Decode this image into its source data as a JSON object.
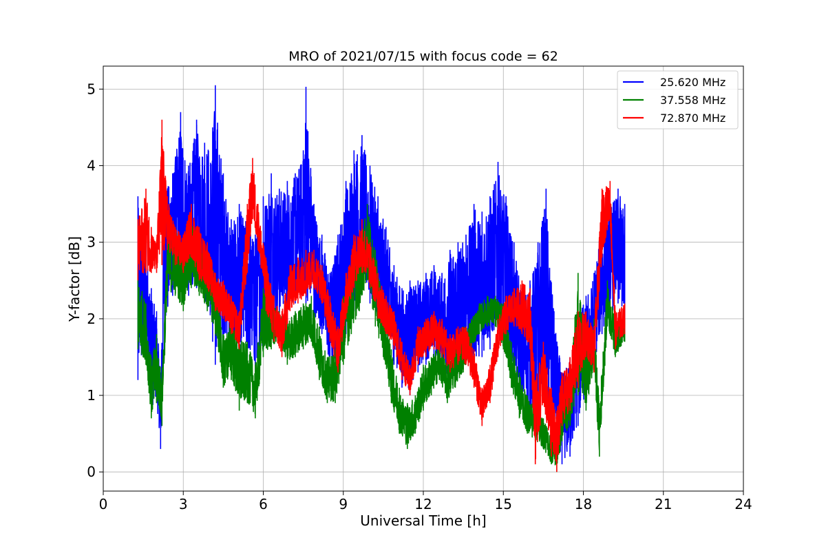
{
  "chart_data": {
    "type": "line",
    "title": "MRO of 2021/07/15 with focus code = 62",
    "xlabel": "Universal Time [h]",
    "ylabel": "Y-factor [dB]",
    "xlim": [
      0,
      24
    ],
    "ylim": [
      -0.25,
      5.3
    ],
    "xticks": [
      0,
      3,
      6,
      9,
      12,
      15,
      18,
      21,
      24
    ],
    "yticks": [
      0,
      1,
      2,
      3,
      4,
      5
    ],
    "grid": true,
    "legend": "top-right",
    "series": [
      {
        "name": "25.620 MHz",
        "color": "#0000ff",
        "band": [
          [
            1.3,
            1.2,
            3.6
          ],
          [
            1.6,
            1.5,
            3.0
          ],
          [
            1.8,
            0.8,
            2.4
          ],
          [
            2.0,
            0.9,
            2.1
          ],
          [
            2.15,
            0.3,
            1.3
          ],
          [
            2.3,
            1.8,
            3.8
          ],
          [
            2.6,
            2.3,
            3.9
          ],
          [
            2.9,
            2.5,
            4.7
          ],
          [
            3.2,
            2.3,
            4.0
          ],
          [
            3.5,
            2.4,
            4.6
          ],
          [
            3.8,
            2.2,
            4.3
          ],
          [
            4.1,
            1.7,
            4.5
          ],
          [
            4.2,
            1.4,
            5.05
          ],
          [
            4.5,
            1.7,
            3.9
          ],
          [
            4.8,
            1.6,
            3.3
          ],
          [
            5.1,
            1.4,
            3.5
          ],
          [
            5.4,
            1.5,
            3.3
          ],
          [
            5.7,
            1.3,
            3.1
          ],
          [
            6.0,
            1.6,
            3.6
          ],
          [
            6.3,
            1.9,
            3.9
          ],
          [
            6.6,
            2.0,
            3.7
          ],
          [
            6.9,
            2.1,
            3.8
          ],
          [
            7.2,
            2.2,
            3.9
          ],
          [
            7.5,
            2.4,
            4.2
          ],
          [
            7.6,
            2.2,
            5.03
          ],
          [
            7.9,
            2.0,
            3.5
          ],
          [
            8.2,
            1.8,
            3.1
          ],
          [
            8.5,
            1.3,
            2.6
          ],
          [
            8.8,
            1.4,
            3.1
          ],
          [
            9.1,
            1.8,
            3.8
          ],
          [
            9.4,
            2.1,
            4.2
          ],
          [
            9.7,
            2.4,
            4.4
          ],
          [
            10.0,
            2.2,
            4.0
          ],
          [
            10.3,
            1.9,
            3.6
          ],
          [
            10.6,
            1.7,
            3.2
          ],
          [
            10.9,
            1.4,
            2.7
          ],
          [
            11.2,
            1.1,
            2.4
          ],
          [
            11.5,
            1.0,
            2.5
          ],
          [
            11.8,
            1.3,
            2.5
          ],
          [
            12.1,
            1.4,
            2.6
          ],
          [
            12.4,
            1.5,
            2.7
          ],
          [
            12.7,
            1.3,
            2.6
          ],
          [
            13.0,
            1.2,
            2.9
          ],
          [
            13.3,
            1.4,
            3.0
          ],
          [
            13.6,
            1.5,
            3.1
          ],
          [
            13.9,
            1.4,
            3.5
          ],
          [
            14.2,
            1.5,
            3.4
          ],
          [
            14.5,
            1.6,
            3.6
          ],
          [
            14.8,
            1.8,
            4.05
          ],
          [
            15.1,
            1.7,
            3.6
          ],
          [
            15.4,
            1.3,
            3.0
          ],
          [
            15.7,
            0.9,
            2.4
          ],
          [
            16.0,
            0.7,
            2.5
          ],
          [
            16.3,
            0.8,
            3.0
          ],
          [
            16.6,
            0.8,
            3.7
          ],
          [
            16.9,
            0.6,
            2.1
          ],
          [
            17.2,
            0.1,
            1.3
          ],
          [
            17.5,
            0.2,
            1.5
          ],
          [
            17.8,
            0.6,
            2.1
          ],
          [
            18.1,
            1.0,
            2.3
          ],
          [
            18.4,
            1.4,
            2.6
          ],
          [
            18.7,
            1.8,
            3.3
          ],
          [
            19.0,
            2.0,
            3.5
          ],
          [
            19.3,
            2.2,
            3.7
          ],
          [
            19.55,
            1.9,
            3.5
          ]
        ]
      },
      {
        "name": "37.558 MHz",
        "color": "#008000",
        "band": [
          [
            1.3,
            1.6,
            2.6
          ],
          [
            1.6,
            1.4,
            2.2
          ],
          [
            1.8,
            0.7,
            1.5
          ],
          [
            2.0,
            0.9,
            1.8
          ],
          [
            2.2,
            0.6,
            1.3
          ],
          [
            2.4,
            2.3,
            3.1
          ],
          [
            2.7,
            2.3,
            3.2
          ],
          [
            3.0,
            2.1,
            3.0
          ],
          [
            3.3,
            2.4,
            3.3
          ],
          [
            3.6,
            2.3,
            3.1
          ],
          [
            3.9,
            2.1,
            2.9
          ],
          [
            4.2,
            1.8,
            2.6
          ],
          [
            4.5,
            1.1,
            1.8
          ],
          [
            4.8,
            1.2,
            2.0
          ],
          [
            5.1,
            0.8,
            1.8
          ],
          [
            5.4,
            0.9,
            1.7
          ],
          [
            5.7,
            0.7,
            1.4
          ],
          [
            6.0,
            1.5,
            2.4
          ],
          [
            6.3,
            1.6,
            2.2
          ],
          [
            6.6,
            1.7,
            2.1
          ],
          [
            6.9,
            1.4,
            2.0
          ],
          [
            7.2,
            1.5,
            2.1
          ],
          [
            7.5,
            1.6,
            2.2
          ],
          [
            7.8,
            1.7,
            2.3
          ],
          [
            8.1,
            1.2,
            1.9
          ],
          [
            8.4,
            0.9,
            1.5
          ],
          [
            8.7,
            0.9,
            1.6
          ],
          [
            9.0,
            1.4,
            2.3
          ],
          [
            9.3,
            1.8,
            2.7
          ],
          [
            9.6,
            2.1,
            3.0
          ],
          [
            9.9,
            2.5,
            3.5
          ],
          [
            10.2,
            1.9,
            2.9
          ],
          [
            10.5,
            1.5,
            2.3
          ],
          [
            10.8,
            0.9,
            1.6
          ],
          [
            11.1,
            0.5,
            1.1
          ],
          [
            11.4,
            0.3,
            0.9
          ],
          [
            11.7,
            0.5,
            1.0
          ],
          [
            12.0,
            0.8,
            1.4
          ],
          [
            12.3,
            1.0,
            1.5
          ],
          [
            12.6,
            1.2,
            1.7
          ],
          [
            12.9,
            0.9,
            1.4
          ],
          [
            13.2,
            1.1,
            1.7
          ],
          [
            13.5,
            1.3,
            1.9
          ],
          [
            13.8,
            1.6,
            2.0
          ],
          [
            14.1,
            1.8,
            2.2
          ],
          [
            14.4,
            1.9,
            2.3
          ],
          [
            14.7,
            1.9,
            2.3
          ],
          [
            15.0,
            1.6,
            2.2
          ],
          [
            15.3,
            1.1,
            1.7
          ],
          [
            15.6,
            0.7,
            1.3
          ],
          [
            15.9,
            0.5,
            1.0
          ],
          [
            16.2,
            0.4,
            0.9
          ],
          [
            16.5,
            0.3,
            0.7
          ],
          [
            16.8,
            0.1,
            0.5
          ],
          [
            17.0,
            0.0,
            0.6
          ],
          [
            17.2,
            0.4,
            0.9
          ],
          [
            17.5,
            0.6,
            1.2
          ],
          [
            17.8,
            1.0,
            2.6
          ],
          [
            18.1,
            0.8,
            1.6
          ],
          [
            18.4,
            1.3,
            2.0
          ],
          [
            18.6,
            0.2,
            0.9
          ],
          [
            18.9,
            1.9,
            2.5
          ],
          [
            19.2,
            1.5,
            2.0
          ],
          [
            19.55,
            1.7,
            2.0
          ]
        ]
      },
      {
        "name": "72.870 MHz",
        "color": "#ff0000",
        "band": [
          [
            1.3,
            2.5,
            3.3
          ],
          [
            1.6,
            2.6,
            3.7
          ],
          [
            1.8,
            2.6,
            3.2
          ],
          [
            2.0,
            2.6,
            3.0
          ],
          [
            2.2,
            2.7,
            4.6
          ],
          [
            2.4,
            2.9,
            3.6
          ],
          [
            2.7,
            2.7,
            3.2
          ],
          [
            3.0,
            2.6,
            3.1
          ],
          [
            3.3,
            2.8,
            3.5
          ],
          [
            3.6,
            2.5,
            3.2
          ],
          [
            3.9,
            2.4,
            3.0
          ],
          [
            4.2,
            2.1,
            2.6
          ],
          [
            4.5,
            2.0,
            2.5
          ],
          [
            4.8,
            1.8,
            2.3
          ],
          [
            5.1,
            1.6,
            2.1
          ],
          [
            5.4,
            2.6,
            3.5
          ],
          [
            5.6,
            3.3,
            4.1
          ],
          [
            5.8,
            2.9,
            3.5
          ],
          [
            6.1,
            2.1,
            2.8
          ],
          [
            6.4,
            1.7,
            2.3
          ],
          [
            6.7,
            1.5,
            2.1
          ],
          [
            7.0,
            2.1,
            2.7
          ],
          [
            7.3,
            2.2,
            2.8
          ],
          [
            7.6,
            2.3,
            2.9
          ],
          [
            7.9,
            2.4,
            2.9
          ],
          [
            8.2,
            2.2,
            2.7
          ],
          [
            8.5,
            1.7,
            2.3
          ],
          [
            8.8,
            1.3,
            1.9
          ],
          [
            9.1,
            2.0,
            2.6
          ],
          [
            9.4,
            2.4,
            3.1
          ],
          [
            9.7,
            2.6,
            3.3
          ],
          [
            10.0,
            2.4,
            3.0
          ],
          [
            10.3,
            2.0,
            2.6
          ],
          [
            10.6,
            1.8,
            2.3
          ],
          [
            10.9,
            1.6,
            2.1
          ],
          [
            11.2,
            1.2,
            1.7
          ],
          [
            11.5,
            1.0,
            1.4
          ],
          [
            11.8,
            1.4,
            1.9
          ],
          [
            12.1,
            1.5,
            2.0
          ],
          [
            12.4,
            1.6,
            2.1
          ],
          [
            12.7,
            1.5,
            2.0
          ],
          [
            13.0,
            1.3,
            1.8
          ],
          [
            13.3,
            1.4,
            1.9
          ],
          [
            13.6,
            1.4,
            1.9
          ],
          [
            13.9,
            1.1,
            1.6
          ],
          [
            14.2,
            0.6,
            1.1
          ],
          [
            14.5,
            0.9,
            1.4
          ],
          [
            14.8,
            1.5,
            2.0
          ],
          [
            15.1,
            1.8,
            2.3
          ],
          [
            15.4,
            1.9,
            2.4
          ],
          [
            15.7,
            1.8,
            2.5
          ],
          [
            16.0,
            1.6,
            2.4
          ],
          [
            16.2,
            0.1,
            1.2
          ],
          [
            16.5,
            0.9,
            1.7
          ],
          [
            16.8,
            0.2,
            1.1
          ],
          [
            17.0,
            0.0,
            0.8
          ],
          [
            17.2,
            0.6,
            1.3
          ],
          [
            17.5,
            0.8,
            1.5
          ],
          [
            17.8,
            1.1,
            2.1
          ],
          [
            18.1,
            1.5,
            2.1
          ],
          [
            18.4,
            1.3,
            1.9
          ],
          [
            18.7,
            2.8,
            3.7
          ],
          [
            19.0,
            3.3,
            3.8
          ],
          [
            19.2,
            1.6,
            2.1
          ],
          [
            19.55,
            1.8,
            2.2
          ]
        ]
      }
    ]
  }
}
